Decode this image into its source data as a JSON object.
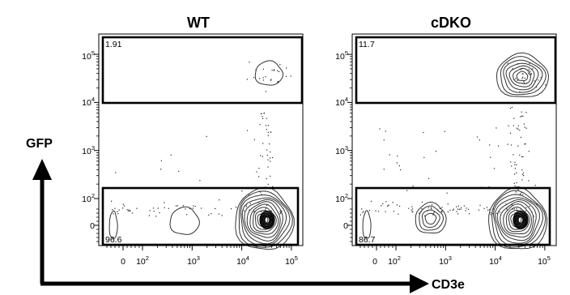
{
  "figure": {
    "x_axis_label": "CD3e",
    "y_axis_label": "GFP"
  },
  "chart_data": [
    {
      "type": "scatter",
      "subtype": "flow-cytometry-contour",
      "title": "WT",
      "xlabel": "CD3e",
      "ylabel": "GFP",
      "x_scale": "biexponential",
      "y_scale": "biexponential",
      "x_tick_labels": [
        "0",
        "10^2",
        "10^3",
        "10^4",
        "10^5"
      ],
      "y_tick_labels": [
        "0",
        "10^2",
        "10^3",
        "10^4",
        "10^5"
      ],
      "gates": [
        {
          "position": "upper",
          "percent": "1.91"
        },
        {
          "position": "lower",
          "percent": "96.6"
        }
      ],
      "populations": [
        {
          "x": 35000,
          "y": 40000,
          "density": "low"
        },
        {
          "x": 28000,
          "y": 20,
          "density": "high"
        },
        {
          "x": 700,
          "y": 15,
          "density": "low"
        },
        {
          "x": -200,
          "y": 0,
          "density": "low"
        }
      ]
    },
    {
      "type": "scatter",
      "subtype": "flow-cytometry-contour",
      "title": "cDKO",
      "xlabel": "CD3e",
      "ylabel": "GFP",
      "x_scale": "biexponential",
      "y_scale": "biexponential",
      "x_tick_labels": [
        "0",
        "10^2",
        "10^3",
        "10^4",
        "10^5"
      ],
      "y_tick_labels": [
        "0",
        "10^2",
        "10^3",
        "10^4",
        "10^5"
      ],
      "gates": [
        {
          "position": "upper",
          "percent": "11.7"
        },
        {
          "position": "lower",
          "percent": "86.7"
        }
      ],
      "populations": [
        {
          "x": 35000,
          "y": 35000,
          "density": "high"
        },
        {
          "x": 28000,
          "y": 20,
          "density": "high"
        },
        {
          "x": 500,
          "y": 25,
          "density": "medium"
        },
        {
          "x": -200,
          "y": 0,
          "density": "low"
        }
      ]
    }
  ]
}
